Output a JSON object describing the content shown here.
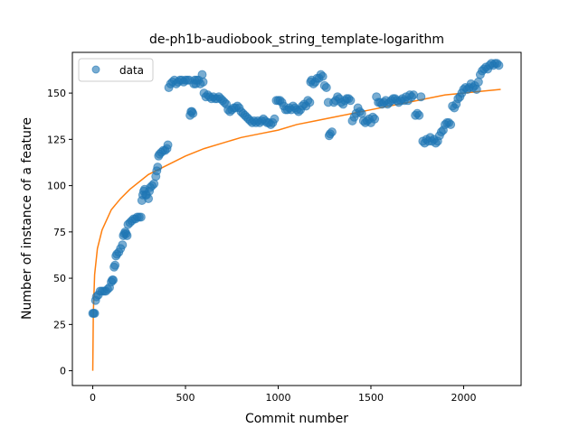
{
  "chart_data": {
    "type": "scatter",
    "title": "de-ph1b-audiobook_string_template-logarithm",
    "xlabel": "Commit number",
    "ylabel": "Number of instance of a feature",
    "xlim": [
      -110,
      2310
    ],
    "ylim": [
      -8,
      172
    ],
    "xticks": [
      0,
      500,
      1000,
      1500,
      2000
    ],
    "yticks": [
      0,
      25,
      50,
      75,
      100,
      125,
      150
    ],
    "grid": false,
    "legend": {
      "placement": "top-left",
      "entries": [
        {
          "label": "data",
          "marker": "circle",
          "color": "#1f77b4"
        }
      ]
    },
    "series": [
      {
        "name": "data",
        "kind": "scatter",
        "color": "#1f77b4",
        "points": [
          [
            0,
            31
          ],
          [
            5,
            31
          ],
          [
            10,
            31
          ],
          [
            15,
            38
          ],
          [
            20,
            40
          ],
          [
            30,
            41
          ],
          [
            40,
            43
          ],
          [
            50,
            43
          ],
          [
            60,
            43
          ],
          [
            70,
            43
          ],
          [
            80,
            44
          ],
          [
            90,
            45
          ],
          [
            100,
            48
          ],
          [
            105,
            49
          ],
          [
            110,
            49
          ],
          [
            115,
            56
          ],
          [
            120,
            57
          ],
          [
            125,
            62
          ],
          [
            130,
            63
          ],
          [
            140,
            64
          ],
          [
            150,
            66
          ],
          [
            160,
            68
          ],
          [
            165,
            73
          ],
          [
            170,
            74
          ],
          [
            175,
            75
          ],
          [
            180,
            74
          ],
          [
            185,
            73
          ],
          [
            190,
            79
          ],
          [
            200,
            80
          ],
          [
            210,
            81
          ],
          [
            220,
            82
          ],
          [
            230,
            82
          ],
          [
            240,
            83
          ],
          [
            250,
            83
          ],
          [
            260,
            83
          ],
          [
            265,
            92
          ],
          [
            270,
            95
          ],
          [
            275,
            97
          ],
          [
            280,
            98
          ],
          [
            285,
            95
          ],
          [
            290,
            95
          ],
          [
            300,
            93
          ],
          [
            305,
            97
          ],
          [
            310,
            99
          ],
          [
            320,
            100
          ],
          [
            330,
            101
          ],
          [
            340,
            105
          ],
          [
            345,
            108
          ],
          [
            350,
            110
          ],
          [
            355,
            116
          ],
          [
            360,
            117
          ],
          [
            370,
            118
          ],
          [
            380,
            119
          ],
          [
            390,
            119
          ],
          [
            400,
            120
          ],
          [
            405,
            122
          ],
          [
            410,
            153
          ],
          [
            420,
            155
          ],
          [
            430,
            156
          ],
          [
            440,
            157
          ],
          [
            450,
            155
          ],
          [
            460,
            156
          ],
          [
            470,
            157
          ],
          [
            480,
            157
          ],
          [
            490,
            156
          ],
          [
            500,
            157
          ],
          [
            510,
            157
          ],
          [
            520,
            157
          ],
          [
            525,
            138
          ],
          [
            530,
            140
          ],
          [
            535,
            140
          ],
          [
            540,
            139
          ],
          [
            545,
            155
          ],
          [
            550,
            157
          ],
          [
            555,
            155
          ],
          [
            560,
            157
          ],
          [
            570,
            157
          ],
          [
            580,
            155
          ],
          [
            590,
            160
          ],
          [
            595,
            156
          ],
          [
            600,
            150
          ],
          [
            610,
            148
          ],
          [
            620,
            149
          ],
          [
            630,
            148
          ],
          [
            640,
            147
          ],
          [
            650,
            148
          ],
          [
            660,
            147
          ],
          [
            670,
            147
          ],
          [
            680,
            148
          ],
          [
            690,
            147
          ],
          [
            700,
            146
          ],
          [
            710,
            145
          ],
          [
            720,
            144
          ],
          [
            730,
            141
          ],
          [
            740,
            140
          ],
          [
            750,
            141
          ],
          [
            760,
            142
          ],
          [
            770,
            142
          ],
          [
            780,
            143
          ],
          [
            790,
            142
          ],
          [
            800,
            140
          ],
          [
            810,
            139
          ],
          [
            820,
            138
          ],
          [
            830,
            137
          ],
          [
            840,
            136
          ],
          [
            850,
            135
          ],
          [
            860,
            134
          ],
          [
            870,
            135
          ],
          [
            880,
            134
          ],
          [
            890,
            135
          ],
          [
            900,
            134
          ],
          [
            910,
            135
          ],
          [
            920,
            136
          ],
          [
            930,
            135
          ],
          [
            940,
            134
          ],
          [
            950,
            134
          ],
          [
            960,
            133
          ],
          [
            970,
            134
          ],
          [
            980,
            136
          ],
          [
            990,
            146
          ],
          [
            1000,
            146
          ],
          [
            1010,
            146
          ],
          [
            1020,
            145
          ],
          [
            1030,
            143
          ],
          [
            1040,
            141
          ],
          [
            1050,
            141
          ],
          [
            1060,
            142
          ],
          [
            1070,
            141
          ],
          [
            1080,
            143
          ],
          [
            1090,
            142
          ],
          [
            1100,
            141
          ],
          [
            1110,
            140
          ],
          [
            1120,
            141
          ],
          [
            1130,
            143
          ],
          [
            1140,
            144
          ],
          [
            1150,
            143
          ],
          [
            1160,
            146
          ],
          [
            1170,
            145
          ],
          [
            1175,
            156
          ],
          [
            1180,
            157
          ],
          [
            1190,
            155
          ],
          [
            1200,
            156
          ],
          [
            1210,
            158
          ],
          [
            1220,
            158
          ],
          [
            1230,
            160
          ],
          [
            1240,
            159
          ],
          [
            1250,
            154
          ],
          [
            1260,
            153
          ],
          [
            1270,
            145
          ],
          [
            1275,
            127
          ],
          [
            1280,
            128
          ],
          [
            1290,
            129
          ],
          [
            1300,
            145
          ],
          [
            1310,
            146
          ],
          [
            1320,
            148
          ],
          [
            1330,
            147
          ],
          [
            1340,
            145
          ],
          [
            1350,
            144
          ],
          [
            1360,
            146
          ],
          [
            1370,
            147
          ],
          [
            1380,
            147
          ],
          [
            1390,
            146
          ],
          [
            1400,
            135
          ],
          [
            1410,
            137
          ],
          [
            1420,
            139
          ],
          [
            1430,
            142
          ],
          [
            1440,
            140
          ],
          [
            1450,
            139
          ],
          [
            1460,
            135
          ],
          [
            1470,
            134
          ],
          [
            1480,
            135
          ],
          [
            1490,
            136
          ],
          [
            1500,
            134
          ],
          [
            1510,
            137
          ],
          [
            1520,
            136
          ],
          [
            1530,
            148
          ],
          [
            1540,
            145
          ],
          [
            1550,
            145
          ],
          [
            1560,
            144
          ],
          [
            1570,
            145
          ],
          [
            1580,
            146
          ],
          [
            1590,
            144
          ],
          [
            1600,
            145
          ],
          [
            1610,
            146
          ],
          [
            1620,
            147
          ],
          [
            1630,
            147
          ],
          [
            1640,
            146
          ],
          [
            1650,
            145
          ],
          [
            1660,
            146
          ],
          [
            1670,
            147
          ],
          [
            1680,
            146
          ],
          [
            1690,
            148
          ],
          [
            1700,
            146
          ],
          [
            1710,
            149
          ],
          [
            1720,
            148
          ],
          [
            1730,
            149
          ],
          [
            1740,
            138
          ],
          [
            1750,
            139
          ],
          [
            1760,
            138
          ],
          [
            1770,
            148
          ],
          [
            1780,
            124
          ],
          [
            1790,
            123
          ],
          [
            1800,
            125
          ],
          [
            1810,
            124
          ],
          [
            1820,
            126
          ],
          [
            1830,
            124
          ],
          [
            1840,
            125
          ],
          [
            1850,
            123
          ],
          [
            1860,
            124
          ],
          [
            1870,
            127
          ],
          [
            1880,
            129
          ],
          [
            1890,
            130
          ],
          [
            1900,
            133
          ],
          [
            1910,
            134
          ],
          [
            1920,
            134
          ],
          [
            1930,
            133
          ],
          [
            1940,
            143
          ],
          [
            1950,
            142
          ],
          [
            1960,
            144
          ],
          [
            1970,
            147
          ],
          [
            1980,
            148
          ],
          [
            1990,
            150
          ],
          [
            2000,
            152
          ],
          [
            2010,
            153
          ],
          [
            2020,
            152
          ],
          [
            2030,
            153
          ],
          [
            2040,
            155
          ],
          [
            2050,
            153
          ],
          [
            2060,
            154
          ],
          [
            2070,
            152
          ],
          [
            2080,
            156
          ],
          [
            2090,
            160
          ],
          [
            2100,
            162
          ],
          [
            2110,
            163
          ],
          [
            2120,
            164
          ],
          [
            2130,
            163
          ],
          [
            2140,
            165
          ],
          [
            2150,
            166
          ],
          [
            2160,
            165
          ],
          [
            2170,
            166
          ],
          [
            2180,
            166
          ],
          [
            2190,
            165
          ]
        ]
      },
      {
        "name": "",
        "kind": "line",
        "color": "#ff7f0e",
        "points": [
          [
            0,
            0
          ],
          [
            3,
            31
          ],
          [
            10,
            52
          ],
          [
            25,
            66
          ],
          [
            50,
            76
          ],
          [
            100,
            87
          ],
          [
            150,
            93
          ],
          [
            200,
            98
          ],
          [
            300,
            106
          ],
          [
            400,
            111
          ],
          [
            500,
            116
          ],
          [
            600,
            120
          ],
          [
            700,
            123
          ],
          [
            800,
            126
          ],
          [
            900,
            128
          ],
          [
            1000,
            130
          ],
          [
            1100,
            133
          ],
          [
            1200,
            135
          ],
          [
            1300,
            137
          ],
          [
            1400,
            139
          ],
          [
            1500,
            141
          ],
          [
            1600,
            143
          ],
          [
            1700,
            145
          ],
          [
            1800,
            147
          ],
          [
            1900,
            149
          ],
          [
            2000,
            150
          ],
          [
            2100,
            151
          ],
          [
            2200,
            152
          ]
        ]
      }
    ]
  }
}
